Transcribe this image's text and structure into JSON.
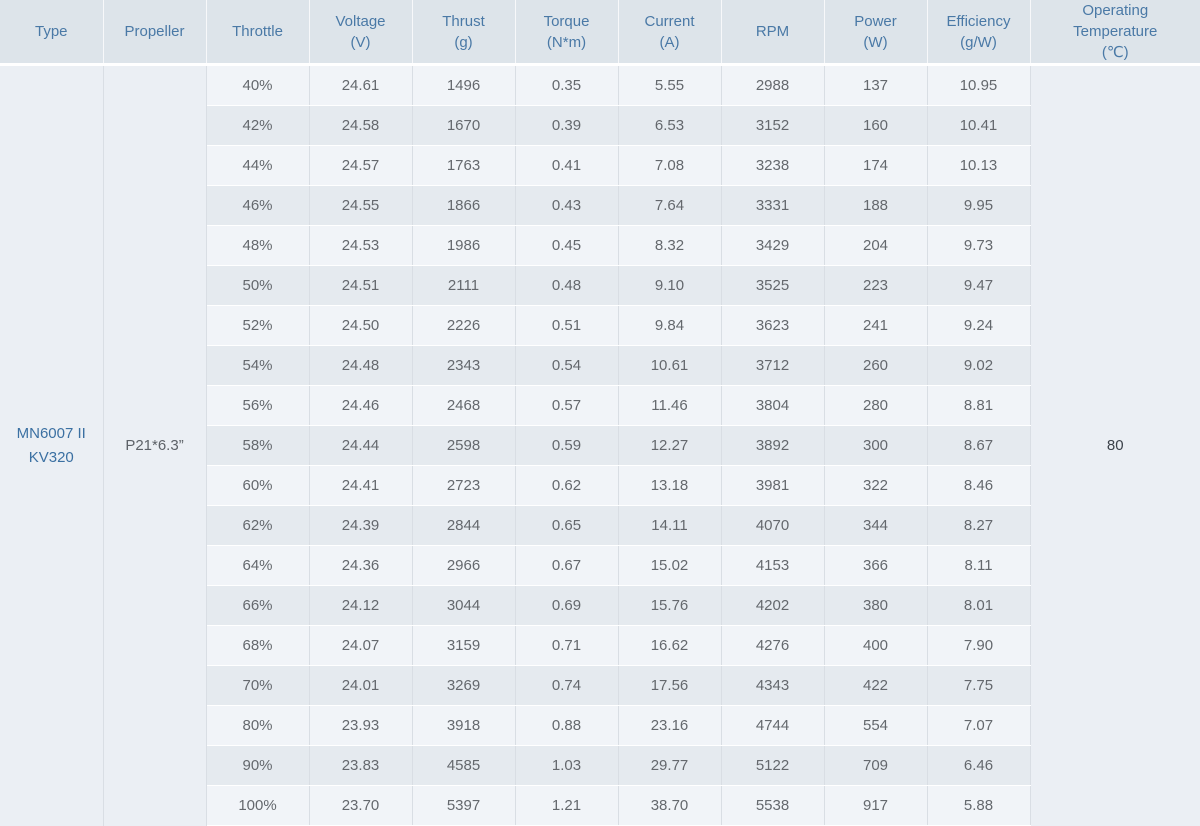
{
  "chart_data": {
    "type": "table",
    "columns": [
      "Type",
      "Propeller",
      "Throttle",
      "Voltage (V)",
      "Thrust (g)",
      "Torque (N*m)",
      "Current (A)",
      "RPM",
      "Power (W)",
      "Efficiency (g/W)",
      "Operating Temperature (℃)"
    ],
    "merged_cells": {
      "type": "MN6007 II KV320",
      "propeller": "P21*6.3”",
      "operating_temperature": "80"
    },
    "rows": [
      [
        "40%",
        "24.61",
        "1496",
        "0.35",
        "5.55",
        "2988",
        "137",
        "10.95"
      ],
      [
        "42%",
        "24.58",
        "1670",
        "0.39",
        "6.53",
        "3152",
        "160",
        "10.41"
      ],
      [
        "44%",
        "24.57",
        "1763",
        "0.41",
        "7.08",
        "3238",
        "174",
        "10.13"
      ],
      [
        "46%",
        "24.55",
        "1866",
        "0.43",
        "7.64",
        "3331",
        "188",
        "9.95"
      ],
      [
        "48%",
        "24.53",
        "1986",
        "0.45",
        "8.32",
        "3429",
        "204",
        "9.73"
      ],
      [
        "50%",
        "24.51",
        "2111",
        "0.48",
        "9.10",
        "3525",
        "223",
        "9.47"
      ],
      [
        "52%",
        "24.50",
        "2226",
        "0.51",
        "9.84",
        "3623",
        "241",
        "9.24"
      ],
      [
        "54%",
        "24.48",
        "2343",
        "0.54",
        "10.61",
        "3712",
        "260",
        "9.02"
      ],
      [
        "56%",
        "24.46",
        "2468",
        "0.57",
        "11.46",
        "3804",
        "280",
        "8.81"
      ],
      [
        "58%",
        "24.44",
        "2598",
        "0.59",
        "12.27",
        "3892",
        "300",
        "8.67"
      ],
      [
        "60%",
        "24.41",
        "2723",
        "0.62",
        "13.18",
        "3981",
        "322",
        "8.46"
      ],
      [
        "62%",
        "24.39",
        "2844",
        "0.65",
        "14.11",
        "4070",
        "344",
        "8.27"
      ],
      [
        "64%",
        "24.36",
        "2966",
        "0.67",
        "15.02",
        "4153",
        "366",
        "8.11"
      ],
      [
        "66%",
        "24.12",
        "3044",
        "0.69",
        "15.76",
        "4202",
        "380",
        "8.01"
      ],
      [
        "68%",
        "24.07",
        "3159",
        "0.71",
        "16.62",
        "4276",
        "400",
        "7.90"
      ],
      [
        "70%",
        "24.01",
        "3269",
        "0.74",
        "17.56",
        "4343",
        "422",
        "7.75"
      ],
      [
        "80%",
        "23.93",
        "3918",
        "0.88",
        "23.16",
        "4744",
        "554",
        "7.07"
      ],
      [
        "90%",
        "23.83",
        "4585",
        "1.03",
        "29.77",
        "5122",
        "709",
        "6.46"
      ],
      [
        "100%",
        "23.70",
        "5397",
        "1.21",
        "38.70",
        "5538",
        "917",
        "5.88"
      ]
    ]
  },
  "table": {
    "column_names": [
      "type",
      "propeller",
      "throttle",
      "voltage",
      "thrust",
      "torque",
      "current",
      "rpm",
      "power",
      "efficiency",
      "operating-temperature"
    ],
    "header_lines": [
      [
        "Type"
      ],
      [
        "Propeller"
      ],
      [
        "Throttle"
      ],
      [
        "Voltage",
        "(V)"
      ],
      [
        "Thrust",
        "(g)"
      ],
      [
        "Torque",
        "(N*m)"
      ],
      [
        "Current",
        "(A)"
      ],
      [
        "RPM"
      ],
      [
        "Power",
        "(W)"
      ],
      [
        "Efficiency",
        "(g/W)"
      ],
      [
        "Operating",
        "Temperature",
        "(℃)"
      ]
    ],
    "row_keys": [
      "throttle",
      "voltage",
      "thrust",
      "torque",
      "current",
      "rpm",
      "power",
      "efficiency"
    ],
    "type_lines": [
      "MN6007 II",
      "KV320"
    ]
  }
}
